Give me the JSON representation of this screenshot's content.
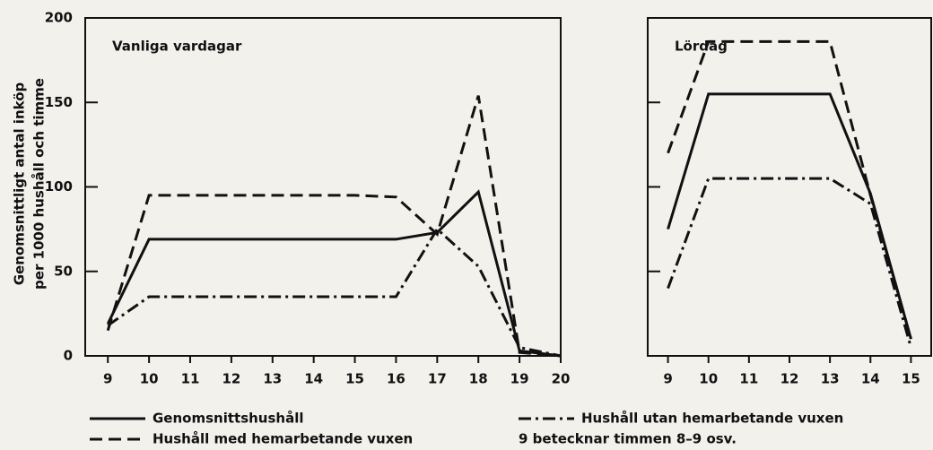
{
  "chart_data": [
    {
      "type": "line",
      "title": "Vanliga vardagar",
      "x": [
        9,
        10,
        11,
        12,
        13,
        14,
        15,
        16,
        17,
        18,
        19,
        20
      ],
      "xlim": [
        8.45,
        20
      ],
      "xticks": [
        9,
        10,
        11,
        12,
        13,
        14,
        15,
        16,
        17,
        18,
        19,
        20
      ],
      "ylim": [
        0,
        200
      ],
      "yticks": [
        0,
        50,
        100,
        150,
        200
      ],
      "ylabel": [
        "Genomsnittligt antal inköp",
        "per 1000 hushåll och timme"
      ],
      "series": [
        {
          "name": "Genomsnittshushåll",
          "color": "#111111",
          "dash": "solid",
          "values": [
            19,
            69,
            69,
            69,
            69,
            69,
            69,
            69,
            73,
            97,
            3,
            0
          ]
        },
        {
          "name": "Hushåll med hemarbetande vuxen",
          "color": "#111111",
          "dash": "dashed",
          "values": [
            15,
            95,
            95,
            95,
            95,
            95,
            95,
            94,
            72,
            154,
            2,
            0
          ]
        },
        {
          "name": "Hushåll utan hemarbetande vuxen",
          "color": "#111111",
          "dash": "dashdot",
          "values": [
            18,
            35,
            35,
            35,
            35,
            35,
            35,
            35,
            75,
            53,
            5,
            0
          ]
        }
      ],
      "note": "9 betecknar timmen 8–9 osv."
    },
    {
      "type": "line",
      "title": "Lördag",
      "x": [
        9,
        10,
        11,
        12,
        13,
        14,
        15
      ],
      "xlim": [
        8.5,
        15.5
      ],
      "xticks": [
        9,
        10,
        11,
        12,
        13,
        14,
        15
      ],
      "ylim": [
        0,
        200
      ],
      "yticks": [
        0,
        50,
        100,
        150,
        200
      ],
      "series": [
        {
          "color": "#111111",
          "dash": "solid",
          "values": [
            75,
            155,
            155,
            155,
            155,
            96,
            10
          ]
        },
        {
          "color": "#111111",
          "dash": "dashed",
          "values": [
            120,
            186,
            186,
            186,
            186,
            95,
            10
          ]
        },
        {
          "color": "#111111",
          "dash": "dashdot",
          "values": [
            40,
            105,
            105,
            105,
            105,
            90,
            5
          ]
        }
      ]
    }
  ]
}
